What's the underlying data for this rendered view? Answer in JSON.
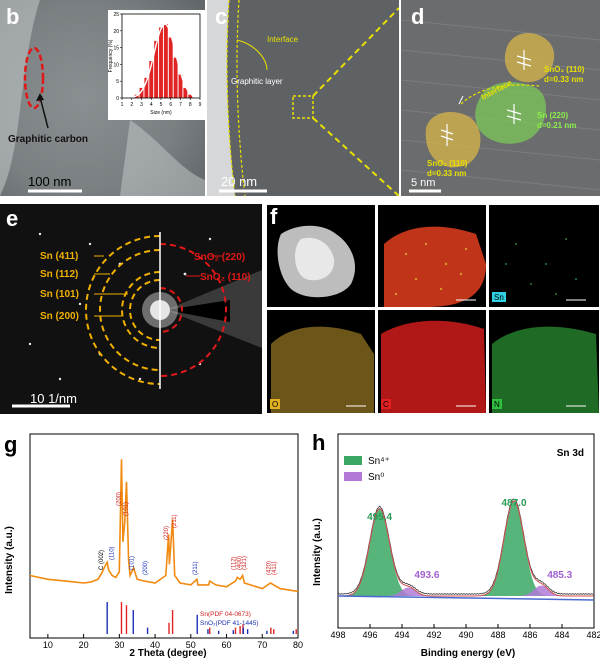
{
  "panel_b": {
    "label": "b",
    "annotation": "Graphitic carbon",
    "scale_bar": "100 nm",
    "inset": {
      "ylabel": "Frequency (%)",
      "xlabel": "Size (nm)",
      "xticks": [
        "1",
        "2",
        "3",
        "4",
        "5",
        "6",
        "7",
        "8",
        "9"
      ],
      "yticks": [
        "0",
        "5",
        "10",
        "15",
        "20",
        "25"
      ]
    }
  },
  "panel_c": {
    "label": "c",
    "interface_label": "Interface",
    "graphitic_label": "Graphitic layer",
    "scale_bar": "20 nm"
  },
  "panel_d": {
    "label": "d",
    "interface_label": "Interface",
    "sno2_top_name": "SnO₂ (110)",
    "sno2_top_d": "d=0.33 nm",
    "sn_name": "Sn (220)",
    "sn_d": "d=0.21 nm",
    "sno2_bottom_name": "SnO₂ (110)",
    "sno2_bottom_d": "d=0.33 nm",
    "scale_bar": "5 nm"
  },
  "panel_e": {
    "label": "e",
    "left_rings": [
      "Sn (411)",
      "Sn (112)",
      "Sn (101)",
      "Sn (200)"
    ],
    "right_rings": [
      "SnO₂ (220)",
      "SnO₂ (110)"
    ],
    "scale_bar": "10 1/nm"
  },
  "panel_f": {
    "label": "f",
    "tiles": [
      {
        "element": "",
        "color": "#000000"
      },
      {
        "element": "",
        "color": "#e03020"
      },
      {
        "element": "Sn",
        "color": "#2fd0e0"
      },
      {
        "element": "O",
        "color": "#e0b020"
      },
      {
        "element": "C",
        "color": "#e02020"
      },
      {
        "element": "N",
        "color": "#30c040"
      }
    ]
  },
  "panel_g": {
    "label": "g",
    "ylabel": "Intensity (a.u.)",
    "xlabel": "2 Theta (degree)",
    "xticks": [
      "10",
      "20",
      "30",
      "40",
      "50",
      "60",
      "70",
      "80"
    ],
    "ref_sn": "Sn(PDF 04-0673)",
    "ref_sno2": "SnO₂(PDF 41-1445)",
    "peak_labels": [
      {
        "text": "C (002)",
        "color": "#000000"
      },
      {
        "text": "(110)",
        "color": "#1a2fb5"
      },
      {
        "text": "(200)",
        "color": "#d02020"
      },
      {
        "text": "(101)",
        "color": "#d02020"
      },
      {
        "text": "(101)",
        "color": "#1a2fb5"
      },
      {
        "text": "(200)",
        "color": "#1a2fb5"
      },
      {
        "text": "(220)",
        "color": "#d02020"
      },
      {
        "text": "(211)",
        "color": "#d02020"
      },
      {
        "text": "(211)",
        "color": "#1a2fb5"
      },
      {
        "text": "(112)",
        "color": "#d02020"
      },
      {
        "text": "(400)",
        "color": "#d02020"
      },
      {
        "text": "(321)",
        "color": "#d02020"
      },
      {
        "text": "(420)",
        "color": "#d02020"
      },
      {
        "text": "(411)",
        "color": "#d02020"
      }
    ]
  },
  "panel_h": {
    "label": "h",
    "title": "Sn 3d",
    "ylabel": "Intensity (a.u.)",
    "xlabel": "Binding energy (eV)",
    "xticks": [
      "498",
      "496",
      "494",
      "492",
      "490",
      "488",
      "486",
      "484",
      "482"
    ],
    "legend": [
      {
        "name": "Sn⁴⁺",
        "color": "#3aa864"
      },
      {
        "name": "Sn⁰",
        "color": "#b07ad6"
      }
    ],
    "peak_labels": [
      {
        "text": "495.4",
        "color": "#2a9a55"
      },
      {
        "text": "493.6",
        "color": "#a060d0"
      },
      {
        "text": "487.0",
        "color": "#2a9a55"
      },
      {
        "text": "485.3",
        "color": "#a060d0"
      }
    ]
  },
  "chart_data": [
    {
      "type": "bar",
      "title": "",
      "xlabel": "Size (nm)",
      "ylabel": "Frequency (%)",
      "categories": [
        2.5,
        3,
        3.5,
        4,
        4.5,
        5,
        5.5,
        6,
        6.5,
        7,
        7.5,
        8
      ],
      "values": [
        1,
        3,
        6,
        11,
        17,
        21,
        22,
        18,
        12,
        7,
        3,
        1
      ],
      "xlim": [
        1,
        9
      ],
      "ylim": [
        0,
        25
      ]
    },
    {
      "type": "line",
      "title": "",
      "xlabel": "2 Theta (degree)",
      "ylabel": "Intensity (a.u.)",
      "xlim": [
        5,
        80
      ],
      "series": [
        {
          "name": "",
          "x": [
            5,
            10,
            15,
            20,
            22,
            24,
            25,
            26,
            26.6,
            27,
            28,
            29,
            30,
            30.6,
            31,
            31.5,
            32,
            32.6,
            33,
            34,
            35,
            37,
            40,
            43,
            43.8,
            44,
            44.9,
            45.5,
            47,
            50,
            51.7,
            52,
            55,
            55.3,
            57,
            60,
            62.5,
            63,
            63.8,
            64.5,
            65,
            70,
            72.3,
            73.2,
            75,
            80
          ],
          "y": [
            12,
            10,
            9,
            8,
            8.5,
            10,
            13,
            17,
            19,
            15,
            12,
            11,
            14,
            74,
            30,
            40,
            62,
            20,
            12,
            16,
            10,
            9,
            8,
            12,
            34,
            18,
            42,
            12,
            8,
            7,
            10,
            7,
            7,
            9,
            7,
            6,
            9,
            11,
            10,
            12,
            8,
            5,
            8,
            7,
            5,
            3.5
          ]
        }
      ],
      "references": [
        {
          "name": "Sn(PDF 04-0673)",
          "x": [
            30.6,
            32.0,
            43.9,
            44.9,
            55.3,
            62.5,
            63.8,
            64.6,
            72.4,
            73.2,
            79.5
          ],
          "rel": [
            1.0,
            0.9,
            0.35,
            0.75,
            0.2,
            0.2,
            0.25,
            0.3,
            0.2,
            0.15,
            0.15
          ]
        },
        {
          "name": "SnO₂(PDF 41-1445)",
          "x": [
            26.6,
            33.9,
            37.9,
            51.8,
            54.8,
            57.8,
            61.9,
            64.7,
            65.9,
            71.3,
            78.7
          ],
          "rel": [
            1.0,
            0.75,
            0.2,
            0.6,
            0.15,
            0.1,
            0.12,
            0.2,
            0.15,
            0.1,
            0.1
          ]
        }
      ]
    },
    {
      "type": "line",
      "title": "Sn 3d",
      "xlabel": "Binding energy (eV)",
      "ylabel": "Intensity (a.u.)",
      "xlim": [
        498,
        482
      ],
      "series": [
        {
          "name": "Sn⁴⁺",
          "x": [
            495.4,
            487.0
          ],
          "y": [
            1.0,
            1.0
          ]
        },
        {
          "name": "Sn⁰",
          "x": [
            493.6,
            485.3
          ],
          "y": [
            0.1,
            0.12
          ]
        }
      ]
    }
  ]
}
